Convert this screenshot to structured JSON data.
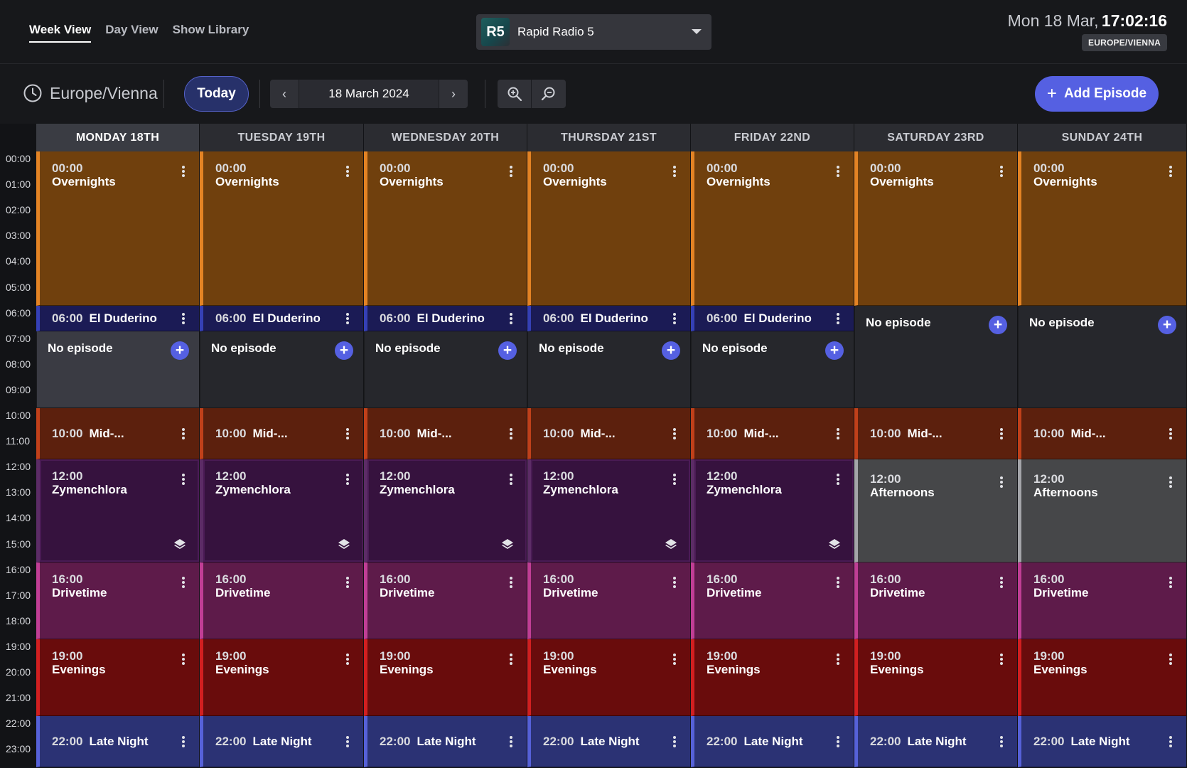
{
  "nav": {
    "week_view": "Week View",
    "day_view": "Day View",
    "show_library": "Show Library"
  },
  "station": {
    "logo_text": "R5",
    "name": "Rapid Radio 5"
  },
  "clock": {
    "date": "Mon 18 Mar,",
    "time": "17:02:16",
    "timezone_badge": "EUROPE/VIENNA"
  },
  "toolbar": {
    "timezone": "Europe/Vienna",
    "today_label": "Today",
    "prev_label": "‹",
    "date_label": "18 March 2024",
    "next_label": "›",
    "add_episode_label": "Add Episode",
    "add_episode_plus": "+"
  },
  "time_labels": [
    "00:00",
    "01:00",
    "02:00",
    "03:00",
    "04:00",
    "05:00",
    "06:00",
    "07:00",
    "08:00",
    "09:00",
    "10:00",
    "11:00",
    "12:00",
    "13:00",
    "14:00",
    "15:00",
    "16:00",
    "17:00",
    "18:00",
    "19:00",
    "20:00",
    "21:00",
    "22:00",
    "23:00"
  ],
  "days": [
    {
      "label": "MONDAY 18TH"
    },
    {
      "label": "TUESDAY 19TH"
    },
    {
      "label": "WEDNESDAY 20TH"
    },
    {
      "label": "THURSDAY 21ST"
    },
    {
      "label": "FRIDAY 22ND"
    },
    {
      "label": "SATURDAY 23RD"
    },
    {
      "label": "SUNDAY 24TH"
    }
  ],
  "shows": {
    "overnights": {
      "time": "00:00",
      "title": "Overnights"
    },
    "el_duderino": {
      "time": "06:00",
      "title": "El Duderino"
    },
    "mid": {
      "time": "10:00",
      "title": "Mid-..."
    },
    "zymenchlora": {
      "time": "12:00",
      "title": "Zymenchlora"
    },
    "afternoons": {
      "time": "12:00",
      "title": "Afternoons"
    },
    "drivetime": {
      "time": "16:00",
      "title": "Drivetime"
    },
    "evenings": {
      "time": "19:00",
      "title": "Evenings"
    },
    "late_night": {
      "time": "22:00",
      "title": "Late Night"
    }
  },
  "no_episode": {
    "label": "No episode",
    "add": "+"
  },
  "colors": {
    "accent": "#5560e2",
    "overnights": "#70400d",
    "el_duderino": "#1b1b55",
    "mid": "#5c200d",
    "zymenchlora": "#36123e",
    "afternoons": "#464749",
    "drivetime": "#5e1b4a",
    "evenings": "#690c0c",
    "late_night": "#2b3274"
  }
}
